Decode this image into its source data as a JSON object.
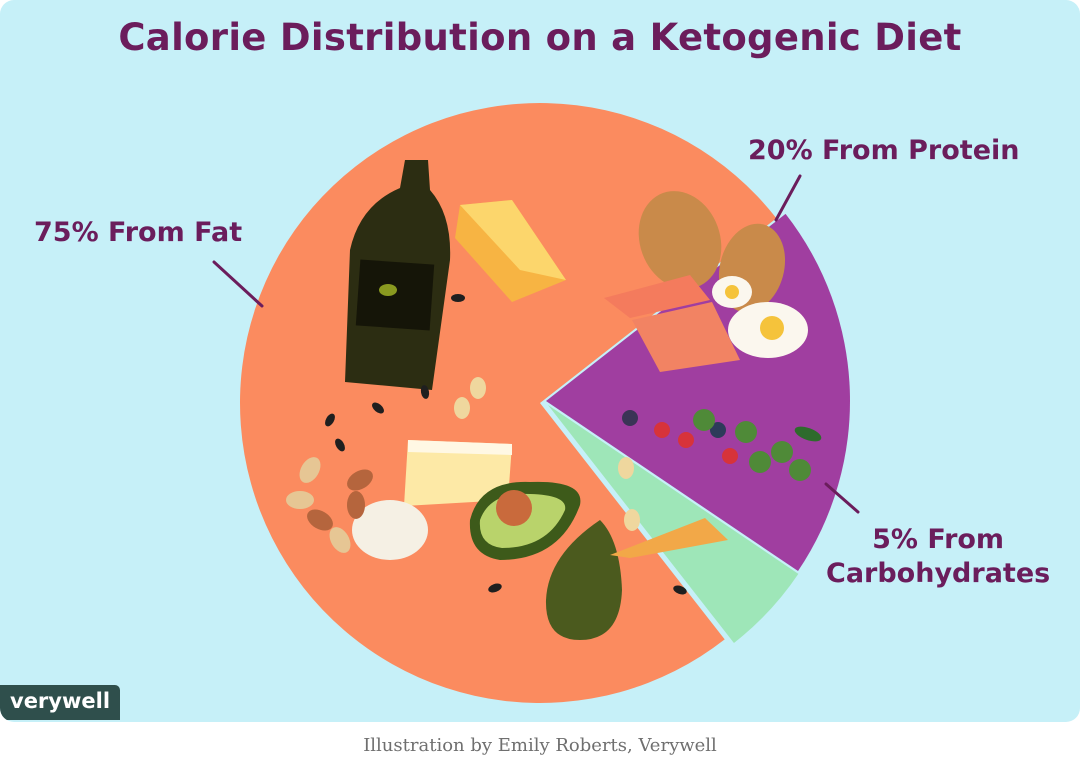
{
  "title": "Calorie Distribution on a Ketogenic Diet",
  "brand": "verywell",
  "caption": "Illustration by Emily Roberts, Verywell",
  "colors": {
    "background": "#c6f0f8",
    "fat": "#fb8b5f",
    "protein": "#a03ea0",
    "carbs": "#9ee6b8",
    "text": "#6b1d5c"
  },
  "chart_data": {
    "type": "pie",
    "title": "Calorie Distribution on a Ketogenic Diet",
    "slices": [
      {
        "name": "Fat",
        "value": 75,
        "label": "75% From Fat"
      },
      {
        "name": "Protein",
        "value": 20,
        "label": "20% From Protein"
      },
      {
        "name": "Carbohydrates",
        "value": 5,
        "label_lines": [
          "5% From",
          "Carbohydrates"
        ]
      }
    ]
  },
  "illustrations": [
    "olive-oil-bottle",
    "cheese",
    "avocado",
    "nuts",
    "seeds",
    "chicken",
    "salmon",
    "eggs",
    "berries",
    "broccoli",
    "spinach"
  ]
}
